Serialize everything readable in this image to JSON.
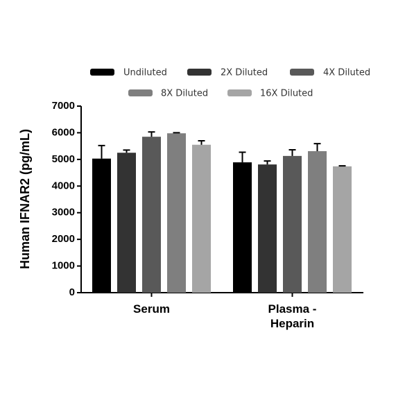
{
  "chart_data": {
    "type": "bar",
    "y_label": "Human IFNAR2 (pg/mL)",
    "categories": [
      "Serum",
      "Plasma - Heparin"
    ],
    "series": [
      {
        "name": "Undiluted",
        "color": "#000000",
        "values": [
          5030,
          4890
        ],
        "errors": [
          490,
          380
        ]
      },
      {
        "name": "2X Diluted",
        "color": "#333333",
        "values": [
          5250,
          4810
        ],
        "errors": [
          100,
          130
        ]
      },
      {
        "name": "4X Diluted",
        "color": "#595959",
        "values": [
          5850,
          5130
        ],
        "errors": [
          180,
          230
        ]
      },
      {
        "name": "8X Diluted",
        "color": "#7f7f7f",
        "values": [
          5980,
          5310
        ],
        "errors": [
          20,
          280
        ]
      },
      {
        "name": "16X Diluted",
        "color": "#a5a5a5",
        "values": [
          5550,
          4740
        ],
        "errors": [
          150,
          20
        ]
      }
    ],
    "ylim": [
      0,
      7000
    ],
    "yticks": [
      0,
      1000,
      2000,
      3000,
      4000,
      5000,
      6000,
      7000
    ]
  }
}
